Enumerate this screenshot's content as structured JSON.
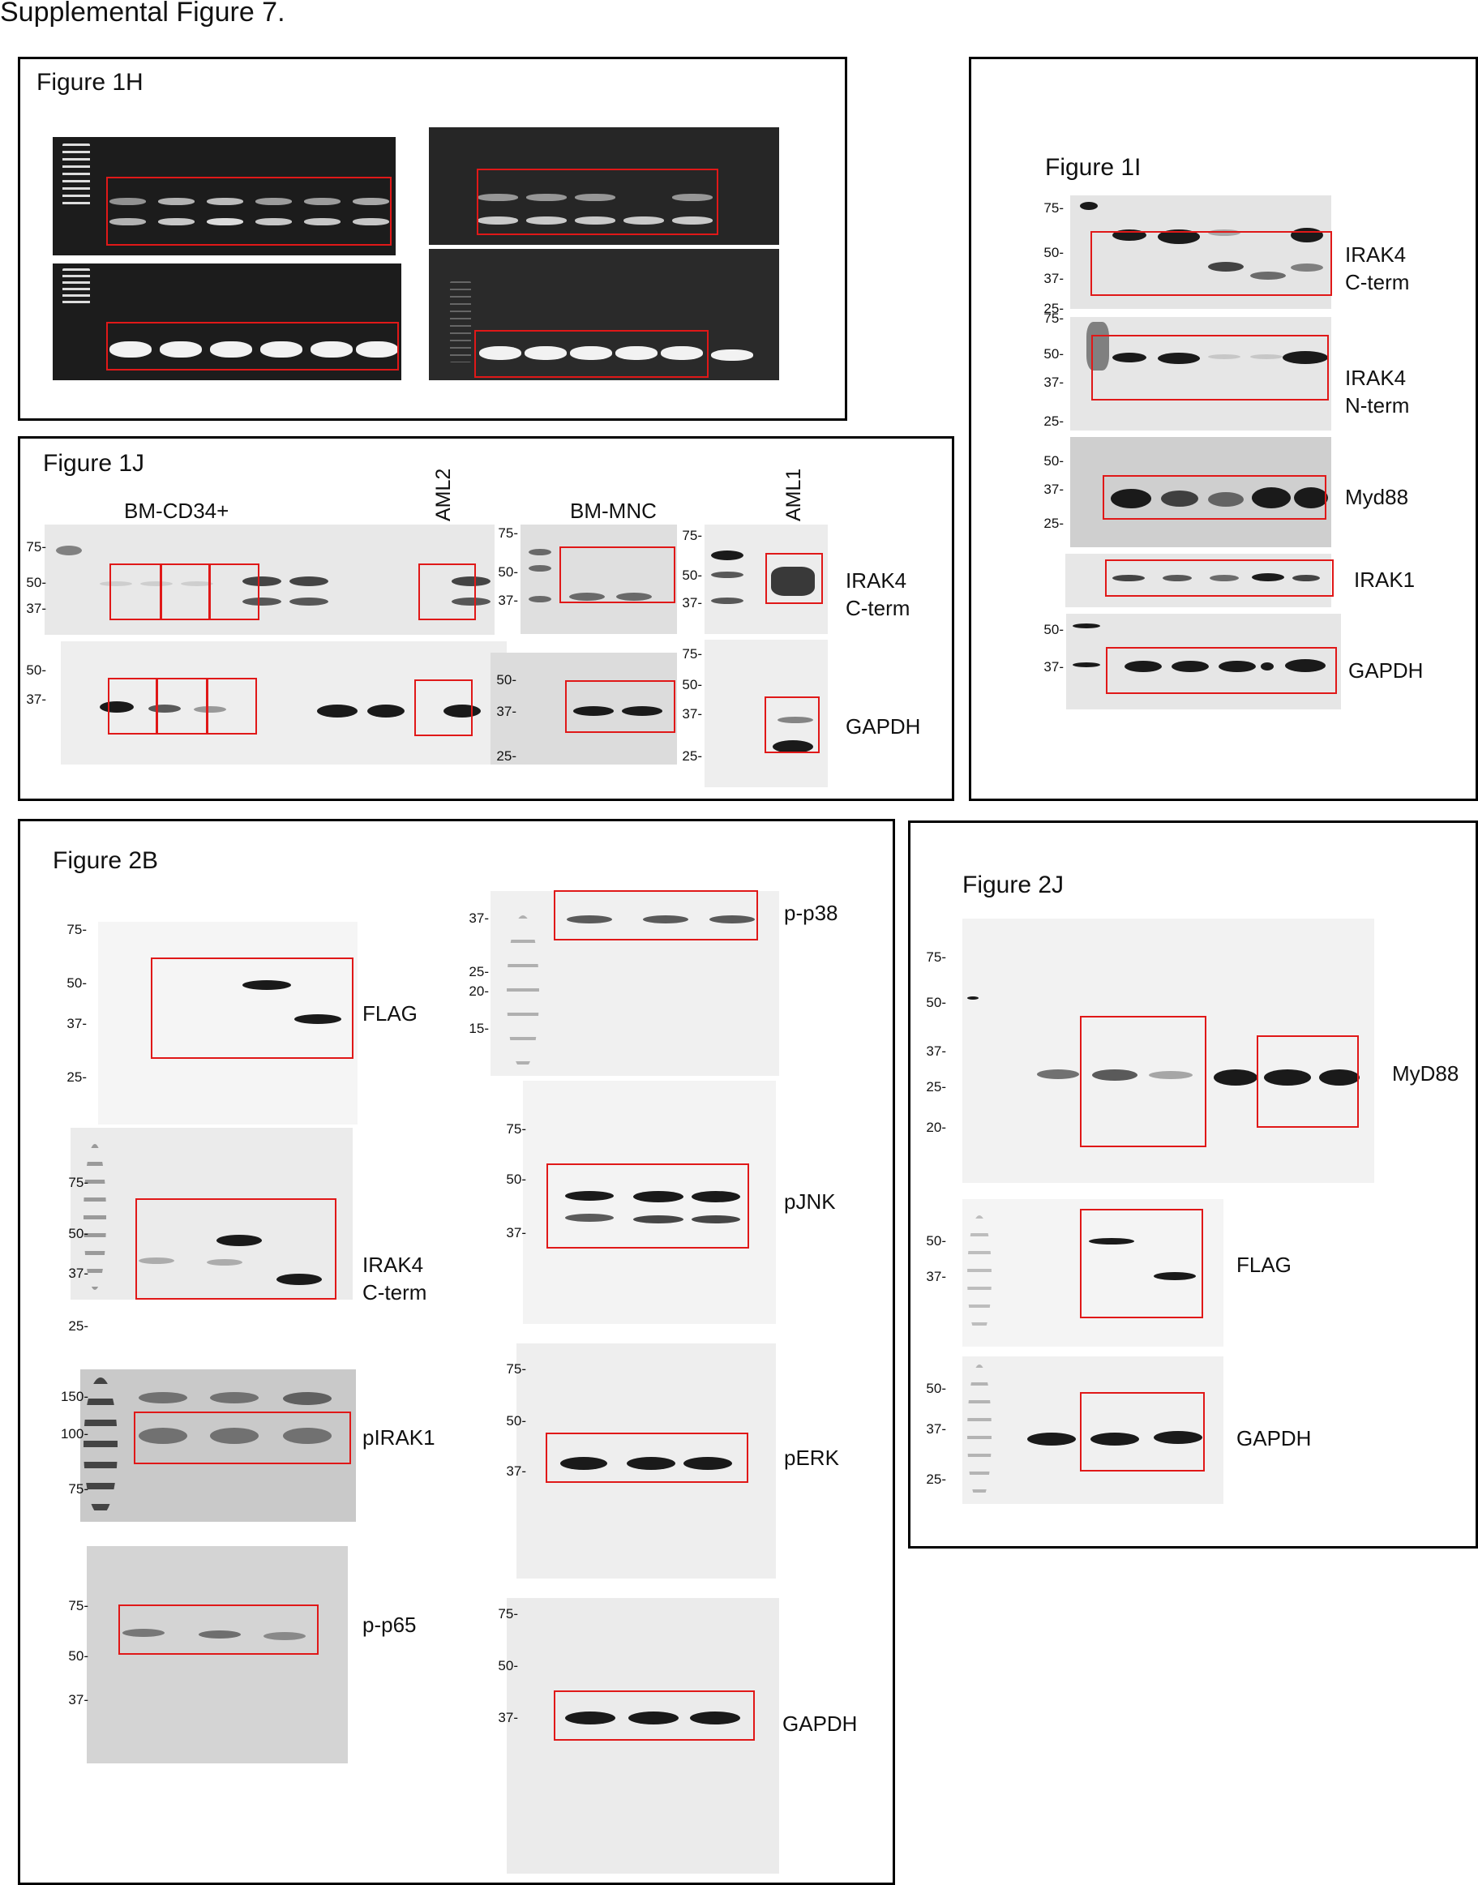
{
  "title": "Supplemental Figure 7.",
  "fig1h": {
    "title": "Figure 1H"
  },
  "fig1i": {
    "title": "Figure 1I",
    "irak4c": {
      "markers": [
        "75-",
        "50-",
        "37-",
        "25-"
      ],
      "label1": "IRAK4",
      "label2": "C-term"
    },
    "irak4n": {
      "markers": [
        "75-",
        "50-",
        "37-",
        "25-"
      ],
      "label1": "IRAK4",
      "label2": "N-term"
    },
    "myd88": {
      "markers": [
        "50-",
        "37-",
        "25-"
      ],
      "label": "Myd88"
    },
    "irak1": {
      "label": "IRAK1"
    },
    "gapdh": {
      "markers": [
        "50-",
        "37-"
      ],
      "label": "GAPDH"
    }
  },
  "fig1j": {
    "title": "Figure 1J",
    "bm_cd34": "BM-CD34+",
    "aml2": "AML2",
    "bm_mnc": "BM-MNC",
    "aml1": "AML1",
    "left_top_markers": [
      "75-",
      "50-",
      "37-"
    ],
    "left_bot_markers": [
      "50-",
      "37-"
    ],
    "mid_top_markers": [
      "75-",
      "50-",
      "37-"
    ],
    "mid_bot_markers": [
      "50-",
      "37-",
      "25-"
    ],
    "right_top_markers": [
      "75-",
      "50-",
      "37-"
    ],
    "right_bot_markers": [
      "75-",
      "50-",
      "37-",
      "25-"
    ],
    "irak4_1": "IRAK4",
    "irak4_2": "C-term",
    "gapdh": "GAPDH"
  },
  "fig2b": {
    "title": "Figure 2B",
    "flag": {
      "markers": [
        "75-",
        "50-",
        "37-",
        "25-"
      ],
      "label": "FLAG"
    },
    "irak4": {
      "markers": [
        "75-",
        "50-",
        "37-",
        "25-"
      ],
      "label1": "IRAK4",
      "label2": "C-term"
    },
    "pirak1": {
      "markers": [
        "150-",
        "100-",
        "75-"
      ],
      "label": "pIRAK1"
    },
    "pp65": {
      "markers": [
        "75-",
        "50-",
        "37-"
      ],
      "label": "p-p65"
    },
    "pp38": {
      "markers": [
        "37-",
        "25-",
        "20-",
        "15-"
      ],
      "label": "p-p38"
    },
    "pjnk": {
      "markers": [
        "75-",
        "50-",
        "37-"
      ],
      "label": "pJNK"
    },
    "perk": {
      "markers": [
        "75-",
        "50-",
        "37-"
      ],
      "label": "pERK"
    },
    "gapdh": {
      "markers": [
        "75-",
        "50-",
        "37-"
      ],
      "label": "GAPDH"
    }
  },
  "fig2j": {
    "title": "Figure 2J",
    "myd88": {
      "markers": [
        "75-",
        "50-",
        "37-",
        "25-",
        "20-"
      ],
      "label": "MyD88"
    },
    "flag": {
      "markers": [
        "50-",
        "37-"
      ],
      "label": "FLAG"
    },
    "gapdh": {
      "markers": [
        "50-",
        "37-",
        "25-"
      ],
      "label": "GAPDH"
    }
  },
  "colors": {
    "frame": "#e01818",
    "panel_border": "#000000"
  }
}
